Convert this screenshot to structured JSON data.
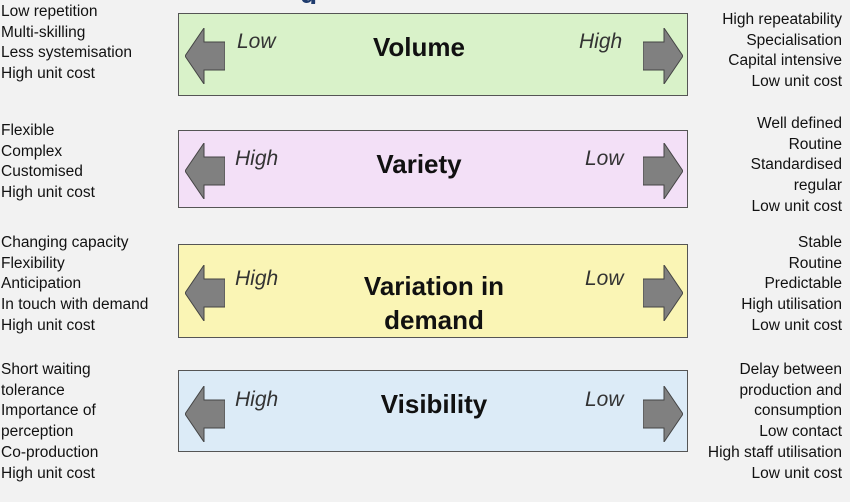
{
  "colors": {
    "volume_bg": "#d9f2c9",
    "variety_bg": "#f3e0f7",
    "variation_bg": "#faf5b5",
    "visibility_bg": "#dcebf7",
    "arrow_fill": "#808080"
  },
  "title_fragment": "g",
  "rows": [
    {
      "name": "Volume",
      "left_label": "Low",
      "right_label": "High",
      "left_traits": [
        "Low repetition",
        "Multi-skilling",
        "Less systemisation",
        "High unit cost"
      ],
      "right_traits": [
        "High repeatability",
        "Specialisation",
        "Capital intensive",
        "Low unit cost"
      ]
    },
    {
      "name": "Variety",
      "left_label": "High",
      "right_label": "Low",
      "left_traits": [
        "Flexible",
        "Complex",
        "Customised",
        "High unit cost"
      ],
      "right_traits": [
        "Well defined",
        "Routine",
        "Standardised",
        "regular",
        "Low unit cost"
      ]
    },
    {
      "name_line1": "Variation in",
      "name_line2": "demand",
      "left_label": "High",
      "right_label": "Low",
      "left_traits": [
        "Changing capacity",
        "Flexibility",
        "Anticipation",
        "In touch with demand",
        "High unit cost"
      ],
      "right_traits": [
        "Stable",
        "Routine",
        "Predictable",
        "High utilisation",
        "Low unit cost"
      ]
    },
    {
      "name": "Visibility",
      "left_label": "High",
      "right_label": "Low",
      "left_traits": [
        "Short waiting",
        "tolerance",
        "Importance of",
        "perception",
        "Co-production",
        "High unit cost"
      ],
      "right_traits": [
        "Delay between",
        "production and",
        "consumption",
        "Low contact",
        "High staff utilisation",
        "Low unit cost"
      ]
    }
  ]
}
